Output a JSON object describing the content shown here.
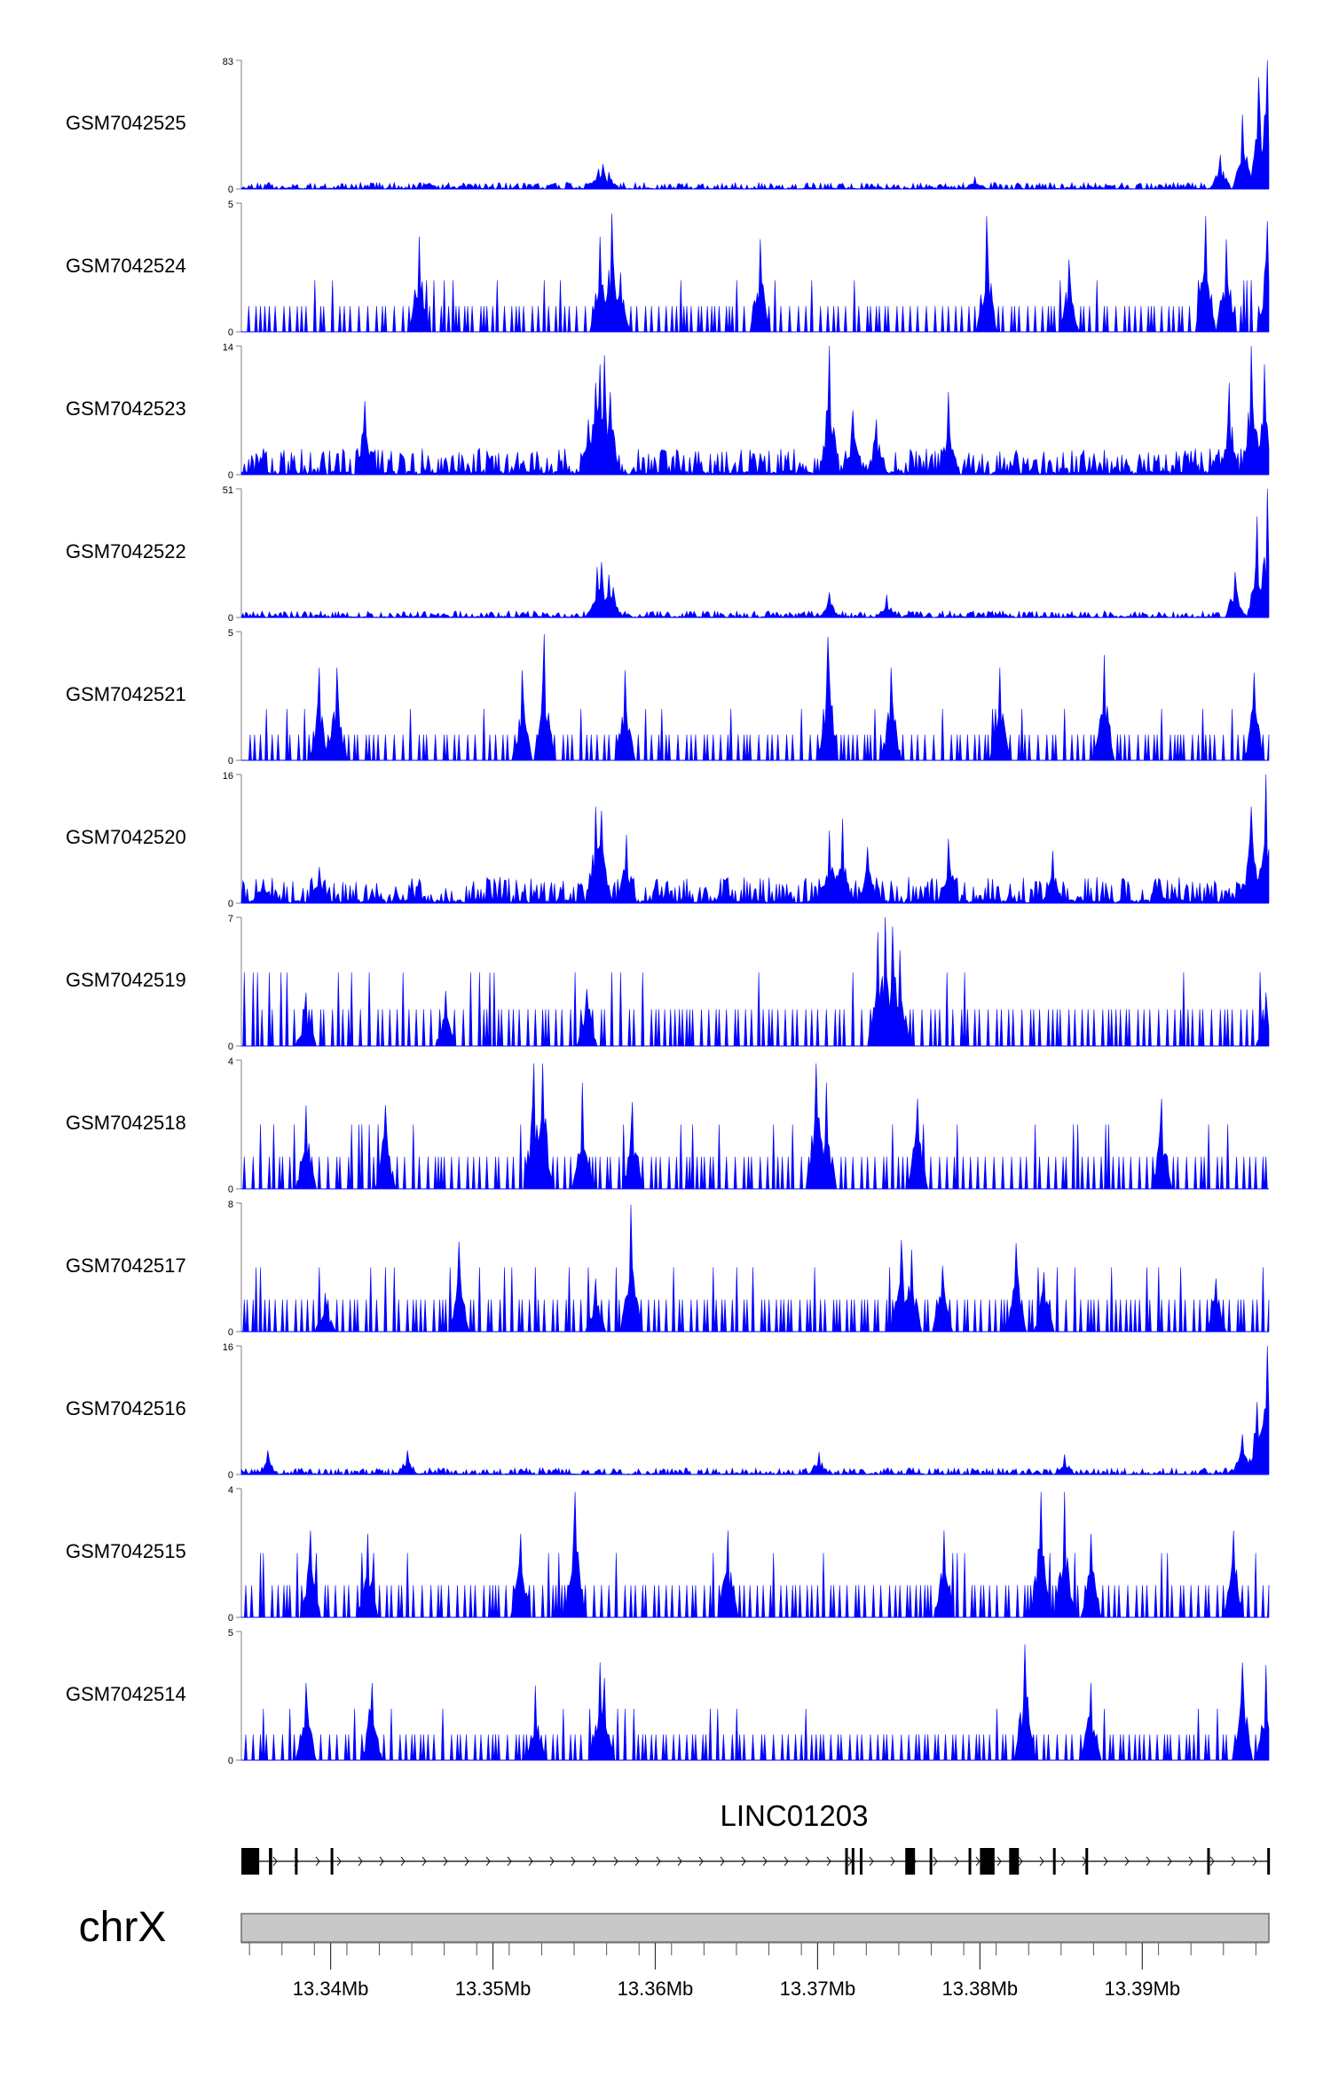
{
  "chart_data": {
    "type": "area",
    "title": "",
    "xlabel": "",
    "ylabel": "",
    "color": "#0000FF",
    "x_unit": "Mb",
    "xlim": [
      13.3345,
      13.3978
    ],
    "x_ticks": [
      13.34,
      13.35,
      13.36,
      13.37,
      13.38,
      13.39
    ],
    "x_tick_labels": [
      "13.34Mb",
      "13.35Mb",
      "13.36Mb",
      "13.37Mb",
      "13.38Mb",
      "13.39Mb"
    ],
    "chromosome_label": "chrX",
    "tracks": [
      {
        "name": "GSM7042525",
        "ymax": 83,
        "ymax_label": "83",
        "ymin_label": "0",
        "profile": "low",
        "peaks": [
          [
            13.3565,
            13
          ],
          [
            13.3568,
            16
          ],
          [
            13.3571,
            11
          ],
          [
            13.3797,
            8
          ],
          [
            13.3948,
            22
          ],
          [
            13.3962,
            48
          ],
          [
            13.3972,
            72
          ],
          [
            13.3977,
            83
          ]
        ]
      },
      {
        "name": "GSM7042524",
        "ymax": 5,
        "ymax_label": "5",
        "ymin_label": "0",
        "profile": "sparse",
        "peaks": [
          [
            13.3455,
            3.7
          ],
          [
            13.3566,
            3.7
          ],
          [
            13.3573,
            4.6
          ],
          [
            13.3579,
            2.3
          ],
          [
            13.3665,
            3.6
          ],
          [
            13.3804,
            4.5
          ],
          [
            13.3855,
            2.8
          ],
          [
            13.3939,
            4.5
          ],
          [
            13.3952,
            3.6
          ],
          [
            13.3977,
            4.3
          ]
        ]
      },
      {
        "name": "GSM7042523",
        "ymax": 14,
        "ymax_label": "14",
        "ymin_label": "0",
        "profile": "medium",
        "peaks": [
          [
            13.3421,
            8
          ],
          [
            13.3559,
            6
          ],
          [
            13.3563,
            10
          ],
          [
            13.3566,
            12
          ],
          [
            13.3569,
            13
          ],
          [
            13.3572,
            9
          ],
          [
            13.3707,
            14
          ],
          [
            13.3722,
            7
          ],
          [
            13.3736,
            6
          ],
          [
            13.3781,
            9
          ],
          [
            13.3954,
            10
          ],
          [
            13.3967,
            14
          ],
          [
            13.3975,
            12
          ]
        ]
      },
      {
        "name": "GSM7042522",
        "ymax": 51,
        "ymax_label": "51",
        "ymin_label": "0",
        "profile": "low",
        "peaks": [
          [
            13.3564,
            20
          ],
          [
            13.3567,
            22
          ],
          [
            13.3571,
            17
          ],
          [
            13.3574,
            12
          ],
          [
            13.3707,
            10
          ],
          [
            13.3743,
            9
          ],
          [
            13.3957,
            18
          ],
          [
            13.3971,
            40
          ],
          [
            13.3977,
            51
          ]
        ]
      },
      {
        "name": "GSM7042521",
        "ymax": 5,
        "ymax_label": "5",
        "ymin_label": "0",
        "profile": "sparse",
        "peaks": [
          [
            13.3393,
            3.6
          ],
          [
            13.3404,
            3.6
          ],
          [
            13.3518,
            3.5
          ],
          [
            13.3532,
            4.9
          ],
          [
            13.3581,
            3.5
          ],
          [
            13.3706,
            4.8
          ],
          [
            13.3745,
            3.6
          ],
          [
            13.3812,
            3.6
          ],
          [
            13.3877,
            4.1
          ],
          [
            13.3969,
            3.4
          ]
        ]
      },
      {
        "name": "GSM7042520",
        "ymax": 16,
        "ymax_label": "16",
        "ymin_label": "0",
        "profile": "medium",
        "peaks": [
          [
            13.3359,
            3
          ],
          [
            13.3393,
            4.5
          ],
          [
            13.3563,
            12
          ],
          [
            13.3567,
            11.5
          ],
          [
            13.3582,
            8.5
          ],
          [
            13.3707,
            9
          ],
          [
            13.3715,
            10.5
          ],
          [
            13.3731,
            7
          ],
          [
            13.3781,
            8
          ],
          [
            13.3845,
            6.5
          ],
          [
            13.3967,
            12
          ],
          [
            13.3976,
            16
          ]
        ]
      },
      {
        "name": "GSM7042519",
        "ymax": 7,
        "ymax_label": "7",
        "ymin_label": "0",
        "profile": "sparse",
        "peaks": [
          [
            13.3385,
            2.9
          ],
          [
            13.3471,
            3
          ],
          [
            13.3558,
            3.1
          ],
          [
            13.3737,
            6.2
          ],
          [
            13.3742,
            7
          ],
          [
            13.3746,
            6.5
          ],
          [
            13.3751,
            5.2
          ],
          [
            13.3976,
            2.9
          ]
        ]
      },
      {
        "name": "GSM7042518",
        "ymax": 4,
        "ymax_label": "4",
        "ymin_label": "0",
        "profile": "sparse",
        "peaks": [
          [
            13.3385,
            2.6
          ],
          [
            13.3434,
            2.6
          ],
          [
            13.3525,
            3.9
          ],
          [
            13.3531,
            3.9
          ],
          [
            13.3555,
            3.3
          ],
          [
            13.3586,
            2.7
          ],
          [
            13.3699,
            3.9
          ],
          [
            13.3705,
            3.3
          ],
          [
            13.3762,
            2.8
          ],
          [
            13.3912,
            2.8
          ]
        ]
      },
      {
        "name": "GSM7042517",
        "ymax": 8,
        "ymax_label": "8",
        "ymin_label": "0",
        "profile": "sparse",
        "peaks": [
          [
            13.3397,
            2.4
          ],
          [
            13.3479,
            5.6
          ],
          [
            13.3563,
            3.3
          ],
          [
            13.3585,
            7.9
          ],
          [
            13.3752,
            5.7
          ],
          [
            13.3758,
            5.1
          ],
          [
            13.3777,
            4.1
          ],
          [
            13.3822,
            5.5
          ],
          [
            13.3839,
            3.7
          ],
          [
            13.3945,
            3.3
          ]
        ]
      },
      {
        "name": "GSM7042516",
        "ymax": 16,
        "ymax_label": "16",
        "ymin_label": "0",
        "profile": "low",
        "peaks": [
          [
            13.3361,
            3
          ],
          [
            13.3447,
            3
          ],
          [
            13.3701,
            2.8
          ],
          [
            13.3852,
            2.5
          ],
          [
            13.3962,
            5
          ],
          [
            13.3971,
            9
          ],
          [
            13.3977,
            16
          ]
        ]
      },
      {
        "name": "GSM7042515",
        "ymax": 4,
        "ymax_label": "4",
        "ymin_label": "0",
        "profile": "sparse",
        "peaks": [
          [
            13.3388,
            2.7
          ],
          [
            13.3423,
            2.6
          ],
          [
            13.3517,
            2.6
          ],
          [
            13.3551,
            3.9
          ],
          [
            13.3645,
            2.7
          ],
          [
            13.3778,
            2.7
          ],
          [
            13.3838,
            3.9
          ],
          [
            13.3852,
            3.9
          ],
          [
            13.3868,
            2.6
          ],
          [
            13.3956,
            2.7
          ]
        ]
      },
      {
        "name": "GSM7042514",
        "ymax": 5,
        "ymax_label": "5",
        "ymin_label": "0",
        "profile": "sparse",
        "peaks": [
          [
            13.3385,
            3
          ],
          [
            13.3426,
            3
          ],
          [
            13.3526,
            2.9
          ],
          [
            13.3566,
            3.8
          ],
          [
            13.3569,
            3.2
          ],
          [
            13.3828,
            4.5
          ],
          [
            13.3868,
            3
          ],
          [
            13.3962,
            3.8
          ],
          [
            13.3976,
            3.7
          ]
        ]
      }
    ],
    "gene": {
      "name": "LINC01203",
      "strand": "+",
      "start": 13.3345,
      "end": 13.3978,
      "exons": [
        [
          13.3345,
          13.3356
        ],
        [
          13.3362,
          13.3364
        ],
        [
          13.3378,
          13.3379
        ],
        [
          13.34,
          13.3401
        ],
        [
          13.3717,
          13.3718
        ],
        [
          13.3721,
          13.3722
        ],
        [
          13.3726,
          13.3727
        ],
        [
          13.3754,
          13.376
        ],
        [
          13.3769,
          13.377
        ],
        [
          13.3793,
          13.3794
        ],
        [
          13.38,
          13.3809
        ],
        [
          13.3818,
          13.3824
        ],
        [
          13.3845,
          13.3846
        ],
        [
          13.3865,
          13.3866
        ],
        [
          13.394,
          13.3941
        ],
        [
          13.3977,
          13.3978
        ]
      ]
    }
  }
}
